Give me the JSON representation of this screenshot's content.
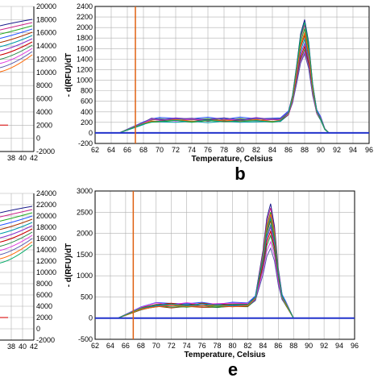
{
  "colors": {
    "grid": "#b0b0b0",
    "baseline": "#2233cc",
    "marker": "#e06010",
    "frame": "#000000",
    "traces": [
      "#1a1a8c",
      "#cc2288",
      "#22aa22",
      "#2255ff",
      "#aa3300",
      "#0099aa",
      "#8833cc",
      "#cc0000",
      "#228844",
      "#dd33dd",
      "#5555aa",
      "#ff6600",
      "#00aa66",
      "#663399"
    ]
  },
  "left_partial": [
    {
      "yticks": [
        "20000",
        "18000",
        "16000",
        "14000",
        "12000",
        "10000",
        "8000",
        "6000",
        "4000",
        "2000",
        "0",
        "-2000"
      ],
      "xticks": [
        "38",
        "40",
        "42"
      ]
    },
    {
      "yticks": [
        "24000",
        "22000",
        "20000",
        "18000",
        "16000",
        "14000",
        "12000",
        "10000",
        "8000",
        "6000",
        "4000",
        "2000",
        "0",
        "-2000"
      ],
      "xticks": [
        "38",
        "40",
        "42"
      ]
    }
  ],
  "chart_data": [
    {
      "type": "line",
      "panel_label": "b",
      "xlabel": "Temperature, Celsius",
      "ylabel": "- d(RFU)/dT",
      "xlim": [
        62,
        96
      ],
      "ylim": [
        -200,
        2400
      ],
      "xticks": [
        62,
        64,
        66,
        68,
        70,
        72,
        74,
        76,
        78,
        80,
        82,
        84,
        86,
        88,
        90,
        92,
        94,
        96
      ],
      "yticks": [
        -200,
        0,
        200,
        400,
        600,
        800,
        1000,
        1200,
        1400,
        1600,
        1800,
        2000,
        2200,
        2400
      ],
      "marker_x": 67,
      "baseline": 0,
      "series_x": [
        65,
        66,
        67,
        68,
        69,
        70,
        72,
        74,
        76,
        78,
        80,
        82,
        84,
        85,
        86,
        86.5,
        87,
        87.5,
        88,
        88.5,
        89,
        89.5,
        90,
        90.5,
        91
      ],
      "peaks": [
        2150,
        2050,
        1980,
        1900,
        1850,
        1780,
        1700,
        1640,
        1580,
        1540,
        1500,
        1900,
        2100
      ],
      "plateaus": [
        240,
        260,
        220,
        280,
        250,
        210,
        270,
        230,
        255,
        245,
        265,
        235,
        225
      ],
      "peak_x": 88
    },
    {
      "type": "line",
      "panel_label": "e",
      "xlabel": "Temperature, Celsius",
      "ylabel": "- d(RFU)/dT",
      "xlim": [
        62,
        96
      ],
      "ylim": [
        -500,
        3000
      ],
      "xticks": [
        62,
        64,
        66,
        68,
        70,
        72,
        74,
        76,
        78,
        80,
        82,
        84,
        86,
        88,
        90,
        92,
        94,
        96
      ],
      "yticks": [
        -500,
        0,
        500,
        1000,
        1500,
        2000,
        2500,
        3000
      ],
      "marker_x": 67,
      "baseline": 0,
      "series_x": [
        65,
        66,
        67,
        68,
        70,
        72,
        74,
        76,
        78,
        80,
        82,
        83,
        84,
        84.5,
        85,
        85.5,
        86,
        86.5,
        87,
        88,
        89,
        90,
        92,
        94
      ],
      "peaks": [
        2700,
        2600,
        2500,
        2400,
        2300,
        2200,
        2150,
        2050,
        1950,
        1800,
        1650,
        2450,
        2350
      ],
      "plateaus": [
        320,
        300,
        280,
        350,
        260,
        310,
        290,
        330,
        270,
        340,
        300,
        285,
        315
      ],
      "peak_x": 85
    }
  ]
}
